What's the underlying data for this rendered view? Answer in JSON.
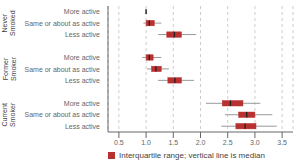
{
  "chart_data": {
    "type": "box",
    "orientation": "horizontal",
    "grid": true,
    "legend": "bottom",
    "xlim": [
      0.3,
      3.7
    ],
    "xticks": [
      0.5,
      {
        "value": 1.0,
        "label": "1.0"
      },
      1.5,
      {
        "value": 2.0,
        "label": "2.0"
      },
      2.5,
      {
        "value": 3.0,
        "label": "3.0"
      },
      3.5
    ],
    "series": [
      {
        "name": "Interquartile range; vertical line is median",
        "color": "#b83030",
        "groups": [
          {
            "label": "Never\nSmoked",
            "categories": [
              "More active",
              "Same or about as active",
              "Less active"
            ],
            "whisker_lo": [
              null,
              0.95,
              1.22
            ],
            "q1": [
              null,
              1.0,
              1.38
            ],
            "median": [
              1.0,
              1.06,
              1.52
            ],
            "q3": [
              null,
              1.15,
              1.65
            ],
            "whisker_hi": [
              null,
              1.28,
              1.92
            ]
          },
          {
            "label": "Former\nSmoker",
            "categories": [
              "More active",
              "Same or about as active",
              "Less active"
            ],
            "whisker_lo": [
              0.93,
              1.02,
              1.22
            ],
            "q1": [
              1.0,
              1.1,
              1.4
            ],
            "median": [
              1.06,
              1.18,
              1.53
            ],
            "q3": [
              1.13,
              1.28,
              1.65
            ],
            "whisker_hi": [
              1.28,
              1.42,
              1.88
            ]
          },
          {
            "label": "Current\nSmoker",
            "categories": [
              "More active",
              "Same or about as active",
              "Less active"
            ],
            "whisker_lo": [
              2.1,
              2.45,
              2.38
            ],
            "q1": [
              2.4,
              2.7,
              2.65
            ],
            "median": [
              2.55,
              2.85,
              2.82
            ],
            "q3": [
              2.78,
              3.0,
              3.02
            ],
            "whisker_hi": [
              3.1,
              3.32,
              3.4
            ]
          }
        ]
      }
    ]
  }
}
